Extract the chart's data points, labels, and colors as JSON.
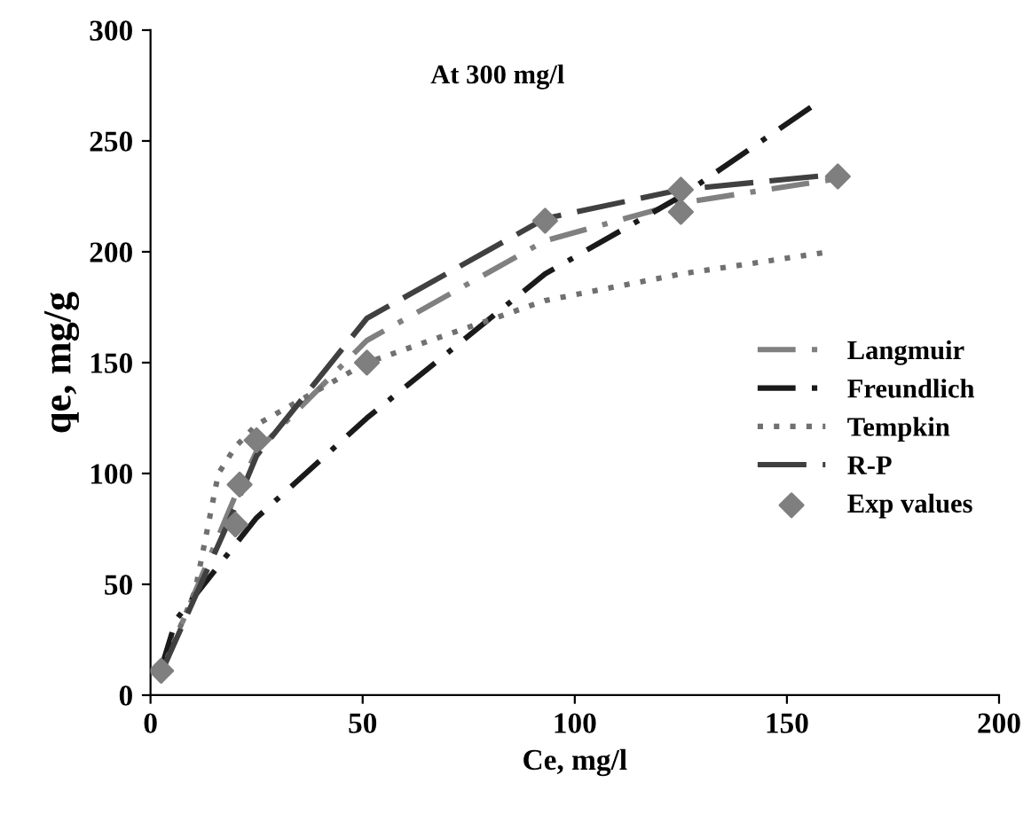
{
  "chart_data": {
    "type": "line",
    "xlabel": "Ce, mg/l",
    "ylabel": "qe, mg/g",
    "annotations": [
      "At 300 mg/l"
    ],
    "xlim": [
      0,
      200
    ],
    "xticks": [
      0,
      50,
      100,
      150,
      200
    ],
    "ylim": [
      0,
      300
    ],
    "yticks": [
      0,
      50,
      100,
      150,
      200,
      250,
      300
    ],
    "grid": false,
    "legend": "right",
    "series": [
      {
        "name": "Langmuir",
        "color": "#808080",
        "line_style": "dashdot",
        "x": [
          2.5,
          20,
          25,
          51,
          93,
          125,
          162
        ],
        "values": [
          10,
          90,
          110,
          160,
          205,
          222,
          233
        ]
      },
      {
        "name": "Freundlich",
        "color": "#1a1a1a",
        "line_style": "dashdot",
        "x": [
          2.5,
          6,
          20,
          25,
          51,
          93,
          125,
          157
        ],
        "values": [
          12,
          34,
          68,
          80,
          125,
          190,
          225,
          267
        ]
      },
      {
        "name": "Tempkin",
        "color": "#707070",
        "line_style": "dotted",
        "x": [
          2.5,
          10.5,
          16,
          20,
          25,
          51,
          93,
          125,
          160
        ],
        "values": [
          10,
          47,
          100,
          112,
          122,
          150,
          178,
          190,
          200
        ]
      },
      {
        "name": "R-P",
        "color": "#404040",
        "line_style": "dashed",
        "x": [
          2.5,
          20,
          25,
          51,
          93,
          125,
          162
        ],
        "values": [
          10,
          85,
          108,
          170,
          215,
          228,
          235
        ]
      },
      {
        "name": "Exp values",
        "type": "scatter",
        "marker": "diamond",
        "color": "#7f7f7f",
        "x": [
          2.5,
          20,
          21,
          25,
          51,
          93,
          125,
          125,
          162
        ],
        "values": [
          11,
          77,
          95,
          115,
          150,
          214,
          218,
          228,
          234
        ]
      }
    ]
  }
}
